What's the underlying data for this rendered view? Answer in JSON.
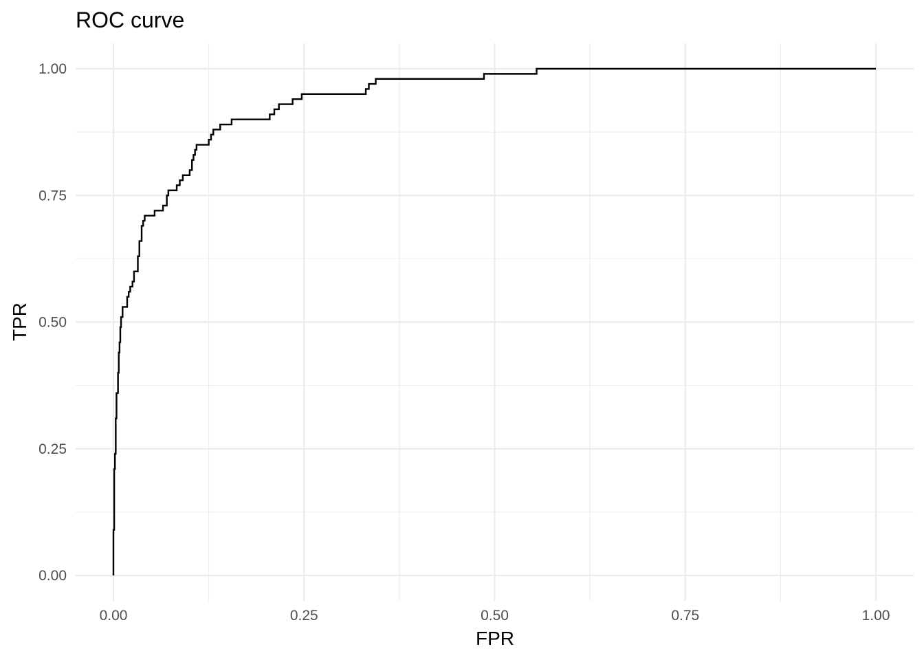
{
  "chart_data": {
    "type": "line",
    "title": "ROC curve",
    "xlabel": "FPR",
    "ylabel": "TPR",
    "xlim": [
      0,
      1
    ],
    "ylim": [
      0,
      1
    ],
    "grid": true,
    "x_ticks": [
      0,
      0.25,
      0.5,
      0.75,
      1
    ],
    "x_tick_labels": [
      "0.00",
      "0.25",
      "0.50",
      "0.75",
      "1.00"
    ],
    "y_ticks": [
      0,
      0.25,
      0.5,
      0.75,
      1
    ],
    "y_tick_labels": [
      "0.00",
      "0.25",
      "0.50",
      "0.75",
      "1.00"
    ],
    "colors": {
      "line": "#000000",
      "grid": "#ebebeb",
      "tick_text": "#4d4d4d"
    },
    "series": [
      {
        "points": [
          [
            0.0,
            0.0
          ],
          [
            0.0,
            0.09
          ],
          [
            0.001,
            0.09
          ],
          [
            0.001,
            0.21
          ],
          [
            0.002,
            0.21
          ],
          [
            0.002,
            0.24
          ],
          [
            0.003,
            0.24
          ],
          [
            0.003,
            0.31
          ],
          [
            0.004,
            0.31
          ],
          [
            0.004,
            0.36
          ],
          [
            0.006,
            0.36
          ],
          [
            0.006,
            0.4
          ],
          [
            0.007,
            0.4
          ],
          [
            0.007,
            0.44
          ],
          [
            0.008,
            0.44
          ],
          [
            0.008,
            0.46
          ],
          [
            0.009,
            0.46
          ],
          [
            0.009,
            0.49
          ],
          [
            0.01,
            0.49
          ],
          [
            0.01,
            0.51
          ],
          [
            0.012,
            0.51
          ],
          [
            0.012,
            0.53
          ],
          [
            0.018,
            0.53
          ],
          [
            0.018,
            0.55
          ],
          [
            0.02,
            0.55
          ],
          [
            0.02,
            0.56
          ],
          [
            0.022,
            0.56
          ],
          [
            0.022,
            0.57
          ],
          [
            0.025,
            0.57
          ],
          [
            0.025,
            0.58
          ],
          [
            0.027,
            0.58
          ],
          [
            0.027,
            0.6
          ],
          [
            0.032,
            0.6
          ],
          [
            0.032,
            0.63
          ],
          [
            0.034,
            0.63
          ],
          [
            0.034,
            0.66
          ],
          [
            0.037,
            0.66
          ],
          [
            0.037,
            0.69
          ],
          [
            0.039,
            0.69
          ],
          [
            0.039,
            0.7
          ],
          [
            0.041,
            0.7
          ],
          [
            0.041,
            0.71
          ],
          [
            0.054,
            0.71
          ],
          [
            0.054,
            0.72
          ],
          [
            0.065,
            0.72
          ],
          [
            0.065,
            0.73
          ],
          [
            0.07,
            0.73
          ],
          [
            0.07,
            0.75
          ],
          [
            0.072,
            0.75
          ],
          [
            0.072,
            0.76
          ],
          [
            0.083,
            0.76
          ],
          [
            0.083,
            0.77
          ],
          [
            0.087,
            0.77
          ],
          [
            0.087,
            0.78
          ],
          [
            0.091,
            0.78
          ],
          [
            0.091,
            0.79
          ],
          [
            0.1,
            0.79
          ],
          [
            0.1,
            0.8
          ],
          [
            0.103,
            0.8
          ],
          [
            0.103,
            0.82
          ],
          [
            0.105,
            0.82
          ],
          [
            0.105,
            0.83
          ],
          [
            0.107,
            0.83
          ],
          [
            0.107,
            0.84
          ],
          [
            0.109,
            0.84
          ],
          [
            0.109,
            0.85
          ],
          [
            0.125,
            0.85
          ],
          [
            0.125,
            0.86
          ],
          [
            0.128,
            0.86
          ],
          [
            0.128,
            0.87
          ],
          [
            0.131,
            0.87
          ],
          [
            0.131,
            0.88
          ],
          [
            0.14,
            0.88
          ],
          [
            0.14,
            0.89
          ],
          [
            0.155,
            0.89
          ],
          [
            0.155,
            0.9
          ],
          [
            0.205,
            0.9
          ],
          [
            0.205,
            0.91
          ],
          [
            0.211,
            0.91
          ],
          [
            0.211,
            0.92
          ],
          [
            0.217,
            0.92
          ],
          [
            0.217,
            0.93
          ],
          [
            0.235,
            0.93
          ],
          [
            0.235,
            0.94
          ],
          [
            0.247,
            0.94
          ],
          [
            0.247,
            0.95
          ],
          [
            0.331,
            0.95
          ],
          [
            0.331,
            0.96
          ],
          [
            0.335,
            0.96
          ],
          [
            0.335,
            0.97
          ],
          [
            0.344,
            0.97
          ],
          [
            0.344,
            0.98
          ],
          [
            0.486,
            0.98
          ],
          [
            0.486,
            0.99
          ],
          [
            0.555,
            0.99
          ],
          [
            0.555,
            1.0
          ],
          [
            0.6,
            1.0
          ],
          [
            0.6,
            1.0
          ],
          [
            1.0,
            1.0
          ]
        ]
      }
    ]
  }
}
